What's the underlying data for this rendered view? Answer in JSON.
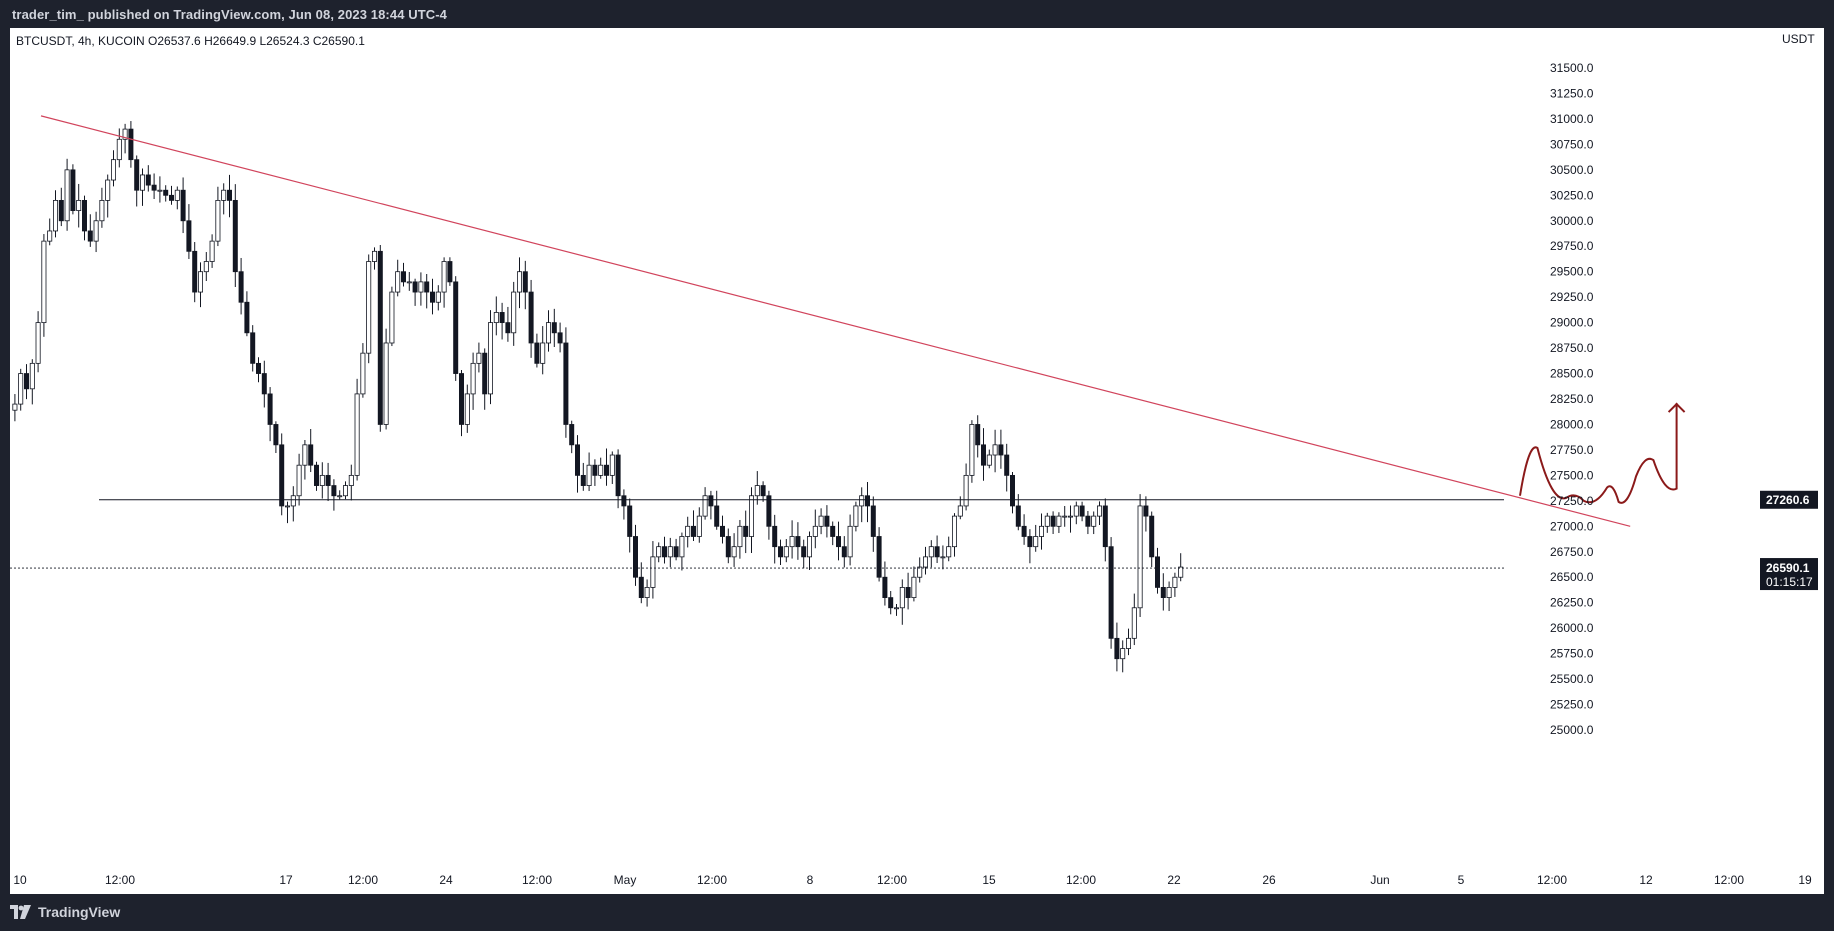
{
  "header": {
    "published_by": "trader_tim_ published on TradingView.com, Jun 08, 2023 18:44 UTC-4"
  },
  "footer": {
    "brand": "TradingView",
    "brand_icon": "tradingview-logo-icon"
  },
  "colors": {
    "background": "#ffffff",
    "frame": "#1e222d",
    "candle": "#131722",
    "trendline": "#d1445c",
    "forecast": "#8b1a1a",
    "support": "#131722"
  },
  "chart_data": {
    "type": "candlestick",
    "symbol_line": "BTCUSDT, 4h, KUCOIN  O26537.6  H26649.9  L26524.3  C26590.1",
    "currency": "USDT",
    "ylim": [
      24900,
      31700
    ],
    "x_ticks": [
      "10",
      "12:00",
      "17",
      "12:00",
      "24",
      "12:00",
      "May",
      "12:00",
      "8",
      "12:00",
      "15",
      "12:00",
      "22",
      "26",
      "Jun",
      "5",
      "12:00",
      "12",
      "12:00",
      "19"
    ],
    "y_ticks": [
      "31500.0",
      "31250.0",
      "31000.0",
      "30750.0",
      "30500.0",
      "30250.0",
      "30000.0",
      "29750.0",
      "29500.0",
      "29250.0",
      "29000.0",
      "28750.0",
      "28500.0",
      "28250.0",
      "28000.0",
      "27750.0",
      "27500.0",
      "27250.0",
      "27000.0",
      "26750.0",
      "26500.0",
      "26250.0",
      "26000.0",
      "25750.0",
      "25500.0",
      "25250.0",
      "25000.0"
    ],
    "support_label": "27260.6",
    "support_level": 27260.6,
    "last_price_label": "26590.1",
    "last_price": 26590.1,
    "countdown": "01:15:17",
    "closes": [
      28200,
      28500,
      28350,
      28600,
      29000,
      29800,
      29900,
      30200,
      30000,
      30500,
      30100,
      30200,
      29900,
      29800,
      30000,
      30200,
      30400,
      30600,
      30800,
      30900,
      30600,
      30300,
      30450,
      30350,
      30300,
      30300,
      30250,
      30200,
      30300,
      30000,
      29700,
      29300,
      29500,
      29600,
      29800,
      30200,
      30300,
      30200,
      29500,
      29200,
      28900,
      28600,
      28500,
      28300,
      28000,
      27800,
      27200,
      27200,
      27300,
      27600,
      27800,
      27600,
      27400,
      27500,
      27400,
      27300,
      27300,
      27400,
      27500,
      28300,
      28700,
      29600,
      29700,
      28000,
      28800,
      29300,
      29500,
      29400,
      29400,
      29300,
      29400,
      29300,
      29200,
      29300,
      29600,
      29400,
      28500,
      28000,
      28300,
      28600,
      28700,
      28300,
      29000,
      29100,
      29000,
      28900,
      29300,
      29500,
      29300,
      28800,
      28600,
      28800,
      29000,
      28900,
      28800,
      28000,
      27800,
      27500,
      27400,
      27600,
      27500,
      27600,
      27500,
      27700,
      27300,
      27200,
      26900,
      26500,
      26300,
      26400,
      26700,
      26800,
      26700,
      26800,
      26700,
      26900,
      27000,
      26900,
      27100,
      27300,
      27200,
      27000,
      26900,
      26700,
      26800,
      27000,
      26900,
      27300,
      27400,
      27300,
      27000,
      26800,
      26700,
      26800,
      26900,
      26800,
      26700,
      26900,
      27000,
      27100,
      27000,
      26900,
      26800,
      26700,
      27000,
      27200,
      27300,
      27200,
      26900,
      26500,
      26300,
      26200,
      26200,
      26400,
      26300,
      26500,
      26600,
      26700,
      26800,
      26700,
      26700,
      26800,
      27100,
      27200,
      27500,
      28000,
      27800,
      27600,
      27700,
      27800,
      27700,
      27500,
      27200,
      27000,
      26900,
      26800,
      26900,
      27000,
      27100,
      27000,
      27100,
      27100,
      27100,
      27200,
      27100,
      27000,
      27100,
      27200,
      26800,
      25900,
      25700,
      25800,
      25900,
      26200,
      27200,
      27100,
      26700,
      26400,
      26300,
      26400,
      26500,
      26600
    ]
  },
  "annotations": {
    "trendline": {
      "from": {
        "bar": 5,
        "price": 31030
      },
      "to": {
        "bar": 279,
        "price": 27000
      }
    },
    "support_line": {
      "from_bar": 15,
      "price": 27260.6
    },
    "forecast_path": [
      [
        260,
        27300
      ],
      [
        263,
        27770
      ],
      [
        268,
        27280
      ],
      [
        271,
        27250
      ],
      [
        275,
        27380
      ],
      [
        277,
        27240
      ],
      [
        280,
        27490
      ],
      [
        283,
        27650
      ],
      [
        287,
        27370
      ],
      [
        287,
        28200
      ]
    ]
  }
}
